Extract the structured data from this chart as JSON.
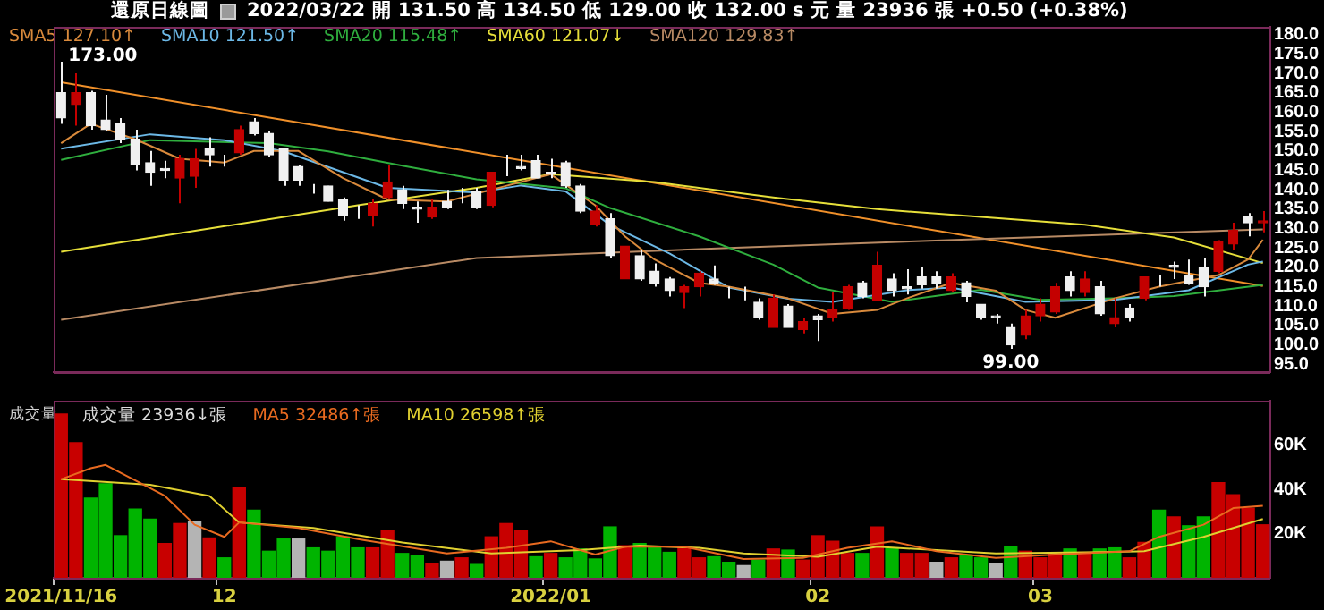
{
  "chart_data": [
    {
      "type": "candlestick",
      "title": "還原日線圖",
      "subtitle": "2022/03/22 開 131.50 高 134.50 低 129.00 收 132.00 s 元 量 23936 張 +0.50 (+0.38%)",
      "categories": [
        "2021/11/16",
        null,
        null,
        null,
        null,
        null,
        null,
        null,
        null,
        null,
        null,
        "12",
        null,
        null,
        null,
        null,
        null,
        null,
        null,
        null,
        null,
        null,
        null,
        null,
        null,
        null,
        null,
        null,
        null,
        null,
        null,
        null,
        null,
        "2022/01",
        null,
        null,
        null,
        null,
        null,
        null,
        null,
        null,
        null,
        null,
        null,
        null,
        null,
        null,
        null,
        null,
        null,
        "02",
        null,
        null,
        null,
        null,
        null,
        null,
        null,
        null,
        null,
        null,
        null,
        null,
        null,
        null,
        "03",
        null,
        null,
        null,
        null,
        null,
        null,
        null,
        null,
        null,
        null,
        null,
        null,
        null,
        null,
        null
      ],
      "ohlc": [
        [
          165,
          173,
          157,
          158.5
        ],
        [
          162,
          170,
          156.5,
          165
        ],
        [
          165,
          165.5,
          155.5,
          156.5
        ],
        [
          158,
          164.5,
          155,
          155.5
        ],
        [
          157,
          158.5,
          152,
          153
        ],
        [
          153,
          155.5,
          145,
          146.5
        ],
        [
          147,
          150,
          141,
          144.5
        ],
        [
          145.5,
          147.5,
          143,
          145
        ],
        [
          143,
          149,
          136.5,
          148
        ],
        [
          143.5,
          150.5,
          140.5,
          148
        ],
        [
          150.5,
          153.5,
          146,
          149
        ],
        [
          148,
          149,
          146,
          148
        ],
        [
          149.5,
          156.5,
          149,
          155.5
        ],
        [
          157.5,
          158.5,
          154,
          154.5
        ],
        [
          154.5,
          155,
          148.5,
          149
        ],
        [
          150.5,
          150.5,
          141,
          142.5
        ],
        [
          146,
          146.5,
          141,
          142.5
        ],
        [
          141.5,
          141.5,
          139,
          141.5
        ],
        [
          141,
          141,
          137,
          137
        ],
        [
          137.5,
          138,
          132,
          133.5
        ],
        [
          132.5,
          136,
          132.5,
          132.5
        ],
        [
          133.5,
          137.5,
          130.5,
          136.5
        ],
        [
          138,
          146.5,
          137.5,
          142
        ],
        [
          140,
          141,
          135,
          136.5
        ],
        [
          135.5,
          137,
          131.5,
          135
        ],
        [
          133,
          137.5,
          132.5,
          135.5
        ],
        [
          137,
          140,
          135,
          135.5
        ],
        [
          138,
          140.5,
          136.5,
          138
        ],
        [
          139.5,
          140.5,
          135,
          135.5
        ],
        [
          136,
          144.5,
          135.5,
          144.5
        ],
        [
          146,
          149,
          143.5,
          146
        ],
        [
          146,
          149,
          145,
          145.5
        ],
        [
          147.5,
          149,
          143,
          143
        ],
        [
          144.5,
          148,
          143,
          144
        ],
        [
          147,
          147.5,
          140.5,
          141
        ],
        [
          141,
          141.5,
          134,
          134.5
        ],
        [
          131,
          136,
          130.5,
          134.5
        ],
        [
          132.5,
          134,
          122.5,
          123
        ],
        [
          117,
          125.5,
          117,
          125.5
        ],
        [
          123,
          124.5,
          116.5,
          117
        ],
        [
          119,
          121,
          115,
          116
        ],
        [
          117,
          117.5,
          112.5,
          114
        ],
        [
          113.5,
          115.5,
          109.5,
          115
        ],
        [
          115,
          119,
          112.5,
          118.5
        ],
        [
          117,
          120.5,
          115.5,
          116
        ],
        [
          113,
          115,
          112,
          113
        ],
        [
          113,
          115,
          111.5,
          113
        ],
        [
          111,
          112,
          106.5,
          107
        ],
        [
          104.5,
          113,
          104.5,
          112
        ],
        [
          110,
          110.5,
          104.5,
          104.5
        ],
        [
          104,
          107,
          103,
          106
        ],
        [
          107.5,
          108,
          101,
          106.5
        ],
        [
          107,
          113.5,
          106,
          109
        ],
        [
          109.5,
          115.5,
          109,
          115
        ],
        [
          116,
          116.5,
          112,
          112.5
        ],
        [
          111.5,
          124,
          111.5,
          120.5
        ],
        [
          117,
          118.5,
          112.5,
          114
        ],
        [
          115,
          119.5,
          113,
          114.5
        ],
        [
          117.5,
          120,
          114.5,
          115.5
        ],
        [
          117.5,
          119,
          114.5,
          116
        ],
        [
          114,
          118.5,
          113.5,
          117.5
        ],
        [
          116,
          116.5,
          111,
          112.5
        ],
        [
          110.5,
          110.5,
          106.5,
          107
        ],
        [
          107.5,
          108,
          105.5,
          107
        ],
        [
          104.5,
          105.5,
          99,
          100
        ],
        [
          102.5,
          109,
          101.5,
          107.5
        ],
        [
          107.5,
          112,
          106,
          110.5
        ],
        [
          108.5,
          116,
          108,
          115
        ],
        [
          117.5,
          119,
          112.5,
          114
        ],
        [
          113.5,
          119,
          112.5,
          117
        ],
        [
          115,
          116.5,
          107.5,
          108
        ],
        [
          105.5,
          112,
          104.5,
          107
        ],
        [
          109.5,
          110.5,
          106,
          107
        ],
        [
          112,
          117.5,
          111.5,
          117.5
        ],
        [
          117.5,
          118,
          115,
          117.5
        ],
        [
          120.5,
          121.5,
          117,
          120
        ],
        [
          118,
          122,
          115.5,
          116
        ],
        [
          120,
          122.5,
          112.5,
          115
        ],
        [
          119,
          127,
          118.5,
          126.5
        ],
        [
          126,
          131.5,
          124.5,
          129.5
        ],
        [
          133,
          134,
          128,
          131.5
        ],
        [
          131.5,
          134.5,
          129,
          132
        ]
      ],
      "colors": [
        "#f0f0f0",
        "#c40000",
        "#f0f0f0",
        "#f0f0f0",
        "#f0f0f0",
        "#f0f0f0",
        "#f0f0f0",
        "#f0f0f0",
        "#c40000",
        "#c40000",
        "#f0f0f0",
        "#f0f0f0",
        "#c40000",
        "#f0f0f0",
        "#f0f0f0",
        "#f0f0f0",
        "#f0f0f0",
        "#f0f0f0",
        "#f0f0f0",
        "#f0f0f0",
        "#f0f0f0",
        "#c40000",
        "#c40000",
        "#f0f0f0",
        "#f0f0f0",
        "#c40000",
        "#f0f0f0",
        "#f0f0f0",
        "#f0f0f0",
        "#c40000",
        "#f0f0f0",
        "#f0f0f0",
        "#f0f0f0",
        "#f0f0f0",
        "#f0f0f0",
        "#f0f0f0",
        "#c40000",
        "#f0f0f0",
        "#c40000",
        "#f0f0f0",
        "#f0f0f0",
        "#f0f0f0",
        "#c40000",
        "#c40000",
        "#f0f0f0",
        "#f0f0f0",
        "#f0f0f0",
        "#f0f0f0",
        "#c40000",
        "#f0f0f0",
        "#c40000",
        "#f0f0f0",
        "#c40000",
        "#c40000",
        "#f0f0f0",
        "#c40000",
        "#f0f0f0",
        "#f0f0f0",
        "#f0f0f0",
        "#f0f0f0",
        "#c40000",
        "#f0f0f0",
        "#f0f0f0",
        "#f0f0f0",
        "#f0f0f0",
        "#c40000",
        "#c40000",
        "#c40000",
        "#f0f0f0",
        "#c40000",
        "#f0f0f0",
        "#c40000",
        "#f0f0f0",
        "#c40000",
        "#f0f0f0",
        "#f0f0f0",
        "#f0f0f0",
        "#f0f0f0",
        "#c40000",
        "#c40000",
        "#f0f0f0",
        "#c40000"
      ],
      "series": [
        {
          "name": "SMA5 127.10↑",
          "type": "line",
          "color": "#d98a3c",
          "values": [
            152,
            null,
            157,
            null,
            null,
            153,
            null,
            null,
            148,
            null,
            null,
            147,
            null,
            150,
            null,
            null,
            150,
            null,
            null,
            143,
            null,
            null,
            137.5,
            null,
            null,
            null,
            137,
            null,
            null,
            140,
            null,
            null,
            null,
            144,
            null,
            null,
            136,
            null,
            128,
            null,
            122,
            null,
            null,
            116,
            null,
            115,
            null,
            null,
            null,
            112,
            null,
            null,
            108,
            null,
            null,
            109,
            null,
            112,
            null,
            null,
            116,
            null,
            null,
            114,
            null,
            109,
            null,
            107,
            null,
            null,
            null,
            112,
            null,
            null,
            115,
            null,
            null,
            null,
            118,
            null,
            122,
            127.1
          ]
        },
        {
          "name": "SMA10 121.50↑",
          "type": "line",
          "color": "#6cb8e6",
          "values": [
            150.6,
            null,
            null,
            null,
            null,
            null,
            154.3,
            null,
            null,
            null,
            null,
            152.8,
            null,
            null,
            null,
            149.9,
            null,
            null,
            null,
            null,
            null,
            null,
            140.5,
            null,
            null,
            null,
            null,
            null,
            139.3,
            null,
            null,
            141.1,
            null,
            null,
            139.6,
            null,
            null,
            130.9,
            null,
            null,
            null,
            123.6,
            null,
            null,
            null,
            114.8,
            null,
            null,
            null,
            111.9,
            null,
            null,
            111.1,
            null,
            null,
            null,
            null,
            114.1,
            null,
            null,
            114.8,
            null,
            null,
            null,
            null,
            111.1,
            null,
            null,
            null,
            null,
            null,
            111.6,
            null,
            null,
            null,
            null,
            114.1,
            null,
            null,
            null,
            120.7,
            121.5
          ]
        },
        {
          "name": "SMA20 115.48↑",
          "type": "line",
          "color": "#2fae3e",
          "values": [
            147.7,
            null,
            null,
            null,
            null,
            null,
            152.8,
            null,
            null,
            null,
            null,
            null,
            null,
            null,
            152,
            null,
            null,
            null,
            149.9,
            null,
            null,
            null,
            null,
            146.2,
            null,
            null,
            null,
            null,
            142.7,
            null,
            null,
            null,
            null,
            null,
            140.4,
            null,
            null,
            135.3,
            null,
            null,
            null,
            null,
            null,
            128,
            null,
            null,
            null,
            null,
            120.7,
            null,
            null,
            114.8,
            null,
            null,
            null,
            null,
            111.1,
            null,
            null,
            null,
            null,
            null,
            114.2,
            null,
            null,
            null,
            111.6,
            null,
            null,
            null,
            null,
            112,
            null,
            null,
            null,
            112.6,
            null,
            null,
            null,
            null,
            null,
            115.5
          ]
        },
        {
          "name": "SMA60 121.07↓",
          "type": "line",
          "color": "#e6df3a",
          "values": [
            124,
            null,
            null,
            null,
            null,
            null,
            null,
            null,
            null,
            null,
            130,
            null,
            null,
            null,
            null,
            null,
            null,
            null,
            null,
            null,
            136,
            null,
            null,
            null,
            null,
            null,
            null,
            null,
            140.5,
            null,
            null,
            null,
            null,
            144,
            null,
            null,
            null,
            null,
            null,
            null,
            142,
            null,
            null,
            null,
            null,
            null,
            null,
            null,
            138,
            null,
            null,
            null,
            null,
            null,
            null,
            135,
            null,
            null,
            null,
            null,
            null,
            null,
            133,
            null,
            null,
            null,
            null,
            null,
            null,
            131,
            null,
            null,
            null,
            null,
            null,
            127.7,
            null,
            null,
            null,
            null,
            null,
            121.1
          ]
        },
        {
          "name": "SMA120 129.83↑",
          "type": "line",
          "color": "#b88a64",
          "values": [
            106.5,
            null,
            null,
            null,
            null,
            null,
            null,
            null,
            null,
            null,
            null,
            null,
            null,
            null,
            null,
            null,
            null,
            null,
            null,
            null,
            null,
            null,
            null,
            null,
            null,
            null,
            null,
            null,
            122.4,
            null,
            null,
            null,
            null,
            null,
            null,
            null,
            null,
            null,
            null,
            null,
            null,
            null,
            null,
            null,
            null,
            125,
            null,
            null,
            null,
            null,
            null,
            null,
            null,
            null,
            null,
            null,
            126.5,
            null,
            null,
            null,
            null,
            null,
            null,
            null,
            null,
            null,
            null,
            null,
            null,
            null,
            null,
            null,
            null,
            null,
            null,
            null,
            null,
            null,
            null,
            null,
            null,
            129.8
          ]
        },
        {
          "type": "line",
          "color": "#f0902a",
          "values": [
            167.7,
            null,
            null,
            null,
            null,
            null,
            null,
            null,
            null,
            null,
            null,
            null,
            null,
            null,
            null,
            null,
            null,
            null,
            null,
            null,
            null,
            null,
            null,
            null,
            null,
            null,
            null,
            null,
            null,
            null,
            null,
            null,
            null,
            null,
            null,
            null,
            null,
            null,
            null,
            null,
            null,
            null,
            null,
            null,
            null,
            null,
            null,
            null,
            null,
            null,
            null,
            null,
            null,
            null,
            null,
            null,
            null,
            null,
            null,
            null,
            null,
            null,
            null,
            null,
            null,
            null,
            null,
            null,
            null,
            null,
            null,
            null,
            null,
            null,
            null,
            null,
            null,
            null,
            null,
            null,
            null,
            115.2
          ]
        }
      ],
      "ylim": [
        93,
        182
      ],
      "yticks": [
        {
          "value": 95,
          "label": "95.0"
        },
        {
          "value": 100,
          "label": "100.0"
        },
        {
          "value": 105,
          "label": "105.0"
        },
        {
          "value": 110,
          "label": "110.0"
        },
        {
          "value": 115,
          "label": "115.0"
        },
        {
          "value": 120,
          "label": "120.0"
        },
        {
          "value": 125,
          "label": "125.0"
        },
        {
          "value": 130,
          "label": "130.0"
        },
        {
          "value": 135,
          "label": "135.0"
        },
        {
          "value": 140,
          "label": "140.0"
        },
        {
          "value": 145,
          "label": "145.0"
        },
        {
          "value": 150,
          "label": "150.0"
        },
        {
          "value": 155,
          "label": "155.0"
        },
        {
          "value": 160,
          "label": "160.0"
        },
        {
          "value": 165,
          "label": "165.0"
        },
        {
          "value": 170,
          "label": "170.0"
        },
        {
          "value": 175,
          "label": "175.0"
        },
        {
          "value": 180,
          "label": "180.0"
        }
      ],
      "annotations": [
        {
          "text": "173.00",
          "x": "2021/11/16",
          "y": 173
        },
        {
          "text": "99.00",
          "y": 99
        }
      ],
      "tick_labels": "y",
      "legend": "top left",
      "marker": "none"
    },
    {
      "type": "bar",
      "title": "成交量",
      "categories": [
        "2021/11/16",
        null,
        null,
        null,
        null,
        null,
        null,
        null,
        null,
        null,
        null,
        "12",
        null,
        null,
        null,
        null,
        null,
        null,
        null,
        null,
        null,
        null,
        null,
        null,
        null,
        null,
        null,
        null,
        null,
        null,
        null,
        null,
        null,
        "2022/01",
        null,
        null,
        null,
        null,
        null,
        null,
        null,
        null,
        null,
        null,
        null,
        null,
        null,
        null,
        null,
        null,
        null,
        "02",
        null,
        null,
        null,
        null,
        null,
        null,
        null,
        null,
        null,
        null,
        null,
        null,
        null,
        null,
        "03",
        null,
        null,
        null,
        null,
        null,
        null,
        null,
        null,
        null,
        null,
        null,
        null,
        null,
        null,
        null
      ],
      "series": [
        {
          "name": "成交量 23936↓張",
          "type": "bar",
          "colors": [
            "#c80000",
            "#c80000",
            "#00b400",
            "#00b400",
            "#00b400",
            "#00b400",
            "#00b400",
            "#c80000",
            "#c80000",
            "#b4b4b4",
            "#c80000",
            "#00b400",
            "#c80000",
            "#00b400",
            "#00b400",
            "#00b400",
            "#b4b4b4",
            "#00b400",
            "#00b400",
            "#00b400",
            "#00b400",
            "#c80000",
            "#c80000",
            "#00b400",
            "#00b400",
            "#c80000",
            "#b4b4b4",
            "#c80000",
            "#00b400",
            "#c80000",
            "#c80000",
            "#c80000",
            "#00b400",
            "#c80000",
            "#00b400",
            "#00b400",
            "#00b400",
            "#00b400",
            "#c80000",
            "#00b400",
            "#00b400",
            "#00b400",
            "#c80000",
            "#c80000",
            "#00b400",
            "#00b400",
            "#b4b4b4",
            "#00b400",
            "#c80000",
            "#00b400",
            "#c80000",
            "#c80000",
            "#c80000",
            "#c80000",
            "#00b400",
            "#c80000",
            "#00b400",
            "#c80000",
            "#c80000",
            "#b4b4b4",
            "#c80000",
            "#00b400",
            "#00b400",
            "#b4b4b4",
            "#00b400",
            "#c80000",
            "#c80000",
            "#c80000",
            "#00b400",
            "#c80000",
            "#00b400",
            "#00b400",
            "#c80000",
            "#c80000",
            "#00b400",
            "#c80000",
            "#00b400",
            "#00b400",
            "#c80000",
            "#c80000",
            "#c80000",
            "#c80000"
          ],
          "values": [
            74000,
            61000,
            36000,
            42500,
            19000,
            31000,
            26500,
            15500,
            24500,
            25500,
            18000,
            9000,
            40500,
            30500,
            12000,
            17500,
            17500,
            13500,
            12000,
            18500,
            13500,
            13500,
            21500,
            11000,
            10000,
            6500,
            7500,
            9000,
            6000,
            18500,
            24500,
            21500,
            9500,
            11000,
            9000,
            13000,
            8500,
            23000,
            14500,
            15500,
            14000,
            11500,
            13500,
            9000,
            9500,
            7000,
            5500,
            8000,
            13000,
            12500,
            8000,
            19000,
            16500,
            11000,
            11000,
            23000,
            13500,
            11000,
            11000,
            7000,
            9000,
            10000,
            9000,
            6500,
            14000,
            12000,
            9000,
            11000,
            13000,
            11500,
            13000,
            13500,
            9000,
            16000,
            30500,
            27500,
            23500,
            27500,
            43000,
            37500,
            31500,
            23936
          ]
        },
        {
          "name": "MA5 32486↑張",
          "type": "line",
          "color": "#e86a20",
          "values": [
            44500,
            null,
            49500,
            51000,
            null,
            null,
            null,
            37000,
            null,
            24000,
            null,
            18500,
            25000,
            null,
            null,
            null,
            22500,
            null,
            null,
            null,
            17500,
            null,
            null,
            null,
            null,
            null,
            11000,
            null,
            null,
            null,
            13500,
            null,
            null,
            16500,
            null,
            null,
            10500,
            null,
            14000,
            null,
            null,
            null,
            14000,
            null,
            null,
            null,
            8500,
            null,
            null,
            null,
            9000,
            null,
            null,
            13500,
            null,
            null,
            16500,
            null,
            null,
            12000,
            null,
            null,
            null,
            9000,
            null,
            null,
            null,
            10500,
            null,
            null,
            null,
            null,
            12000,
            null,
            18500,
            null,
            null,
            24000,
            null,
            31500,
            null,
            32486
          ]
        },
        {
          "name": "MA10 26598↑張",
          "type": "line",
          "color": "#e0d030",
          "values": [
            44500,
            null,
            null,
            null,
            null,
            null,
            42000,
            null,
            null,
            null,
            37000,
            null,
            25000,
            null,
            null,
            null,
            null,
            22500,
            null,
            null,
            null,
            null,
            null,
            16000,
            null,
            null,
            null,
            null,
            null,
            11000,
            null,
            null,
            null,
            null,
            null,
            12500,
            null,
            null,
            null,
            14500,
            null,
            null,
            null,
            13500,
            null,
            null,
            11000,
            null,
            null,
            null,
            null,
            9500,
            null,
            null,
            null,
            14000,
            null,
            null,
            null,
            null,
            null,
            null,
            null,
            11000,
            null,
            null,
            null,
            null,
            null,
            11500,
            null,
            null,
            null,
            12000,
            null,
            null,
            null,
            18500,
            null,
            null,
            null,
            26598
          ]
        }
      ],
      "ylim": [
        0,
        80000
      ],
      "yticks": [
        {
          "value": 20000,
          "label": "20K"
        },
        {
          "value": 40000,
          "label": "40K"
        },
        {
          "value": 60000,
          "label": "60K"
        }
      ],
      "legend": "top left",
      "marker": "none"
    }
  ]
}
